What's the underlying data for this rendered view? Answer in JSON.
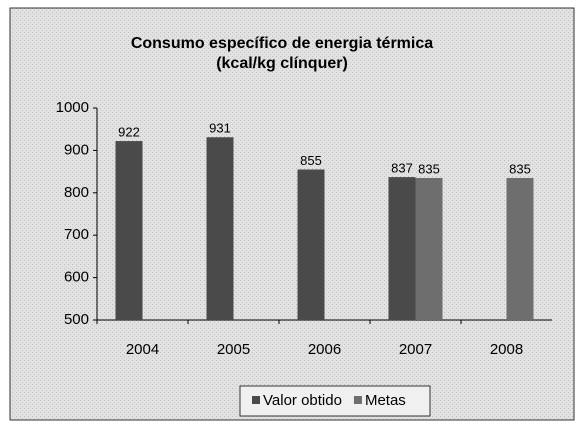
{
  "chart_data": {
    "type": "bar",
    "title": "Consumo específico de energia térmica",
    "subtitle": "(kcal/kg clínquer)",
    "categories": [
      "2004",
      "2005",
      "2006",
      "2007",
      "2008"
    ],
    "series": [
      {
        "name": "Valor obtido",
        "color": "#4a4a4a",
        "values": [
          922,
          931,
          855,
          837,
          null
        ]
      },
      {
        "name": "Metas",
        "color": "#6e6e6e",
        "values": [
          null,
          null,
          null,
          835,
          835
        ]
      }
    ],
    "ylim": [
      500,
      1000
    ],
    "yticks": [
      500,
      600,
      700,
      800,
      900,
      1000
    ],
    "grid": false,
    "legend": "bottom"
  }
}
